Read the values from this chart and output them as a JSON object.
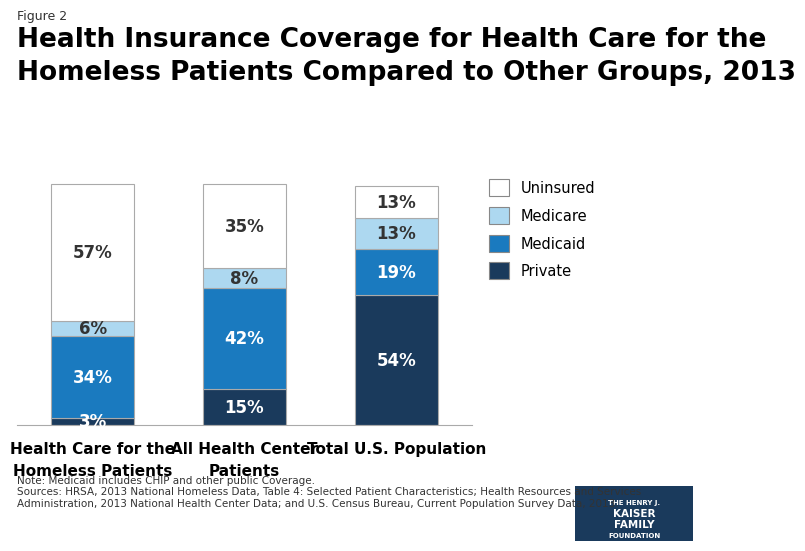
{
  "categories": [
    "Health Care for the\nHomeless Patients",
    "All Health Center\nPatients",
    "Total U.S. Population"
  ],
  "segments": {
    "Private": [
      3,
      15,
      54
    ],
    "Medicaid": [
      34,
      42,
      19
    ],
    "Medicare": [
      6,
      8,
      13
    ],
    "Uninsured": [
      57,
      35,
      13
    ]
  },
  "colors": {
    "Private": "#1a3a5c",
    "Medicaid": "#1a7abf",
    "Medicare": "#add8f0",
    "Uninsured": "#ffffff"
  },
  "label_text_colors": {
    "Private": "#ffffff",
    "Medicaid": "#ffffff",
    "Medicare": "#333333",
    "Uninsured": "#333333"
  },
  "labels": {
    "Private": [
      "3%",
      "15%",
      "54%"
    ],
    "Medicaid": [
      "34%",
      "42%",
      "19%"
    ],
    "Medicare": [
      "6%",
      "8%",
      "13%"
    ],
    "Uninsured": [
      "57%",
      "35%",
      "13%"
    ]
  },
  "figure2_label": "Figure 2",
  "title_line1": "Health Insurance Coverage for Health Care for the",
  "title_line2": "Homeless Patients Compared to Other Groups, 2013",
  "note": "Note: Medicaid includes CHIP and other public Coverage.\nSources: HRSA, 2013 National Homeless Data, Table 4: Selected Patient Characteristics; Health Resources and Services\nAdministration, 2013 National Health Center Data; and U.S. Census Bureau, Current Population Survey Data, 2013.",
  "legend_labels": [
    "Uninsured",
    "Medicare",
    "Medicaid",
    "Private"
  ],
  "legend_colors": [
    "#ffffff",
    "#add8f0",
    "#1a7abf",
    "#1a3a5c"
  ],
  "bar_width": 0.55,
  "bar_edge_color": "#aaaaaa",
  "background_color": "#ffffff",
  "label_fontsize": 12,
  "title_fontsize": 19,
  "axis_label_fontsize": 11
}
